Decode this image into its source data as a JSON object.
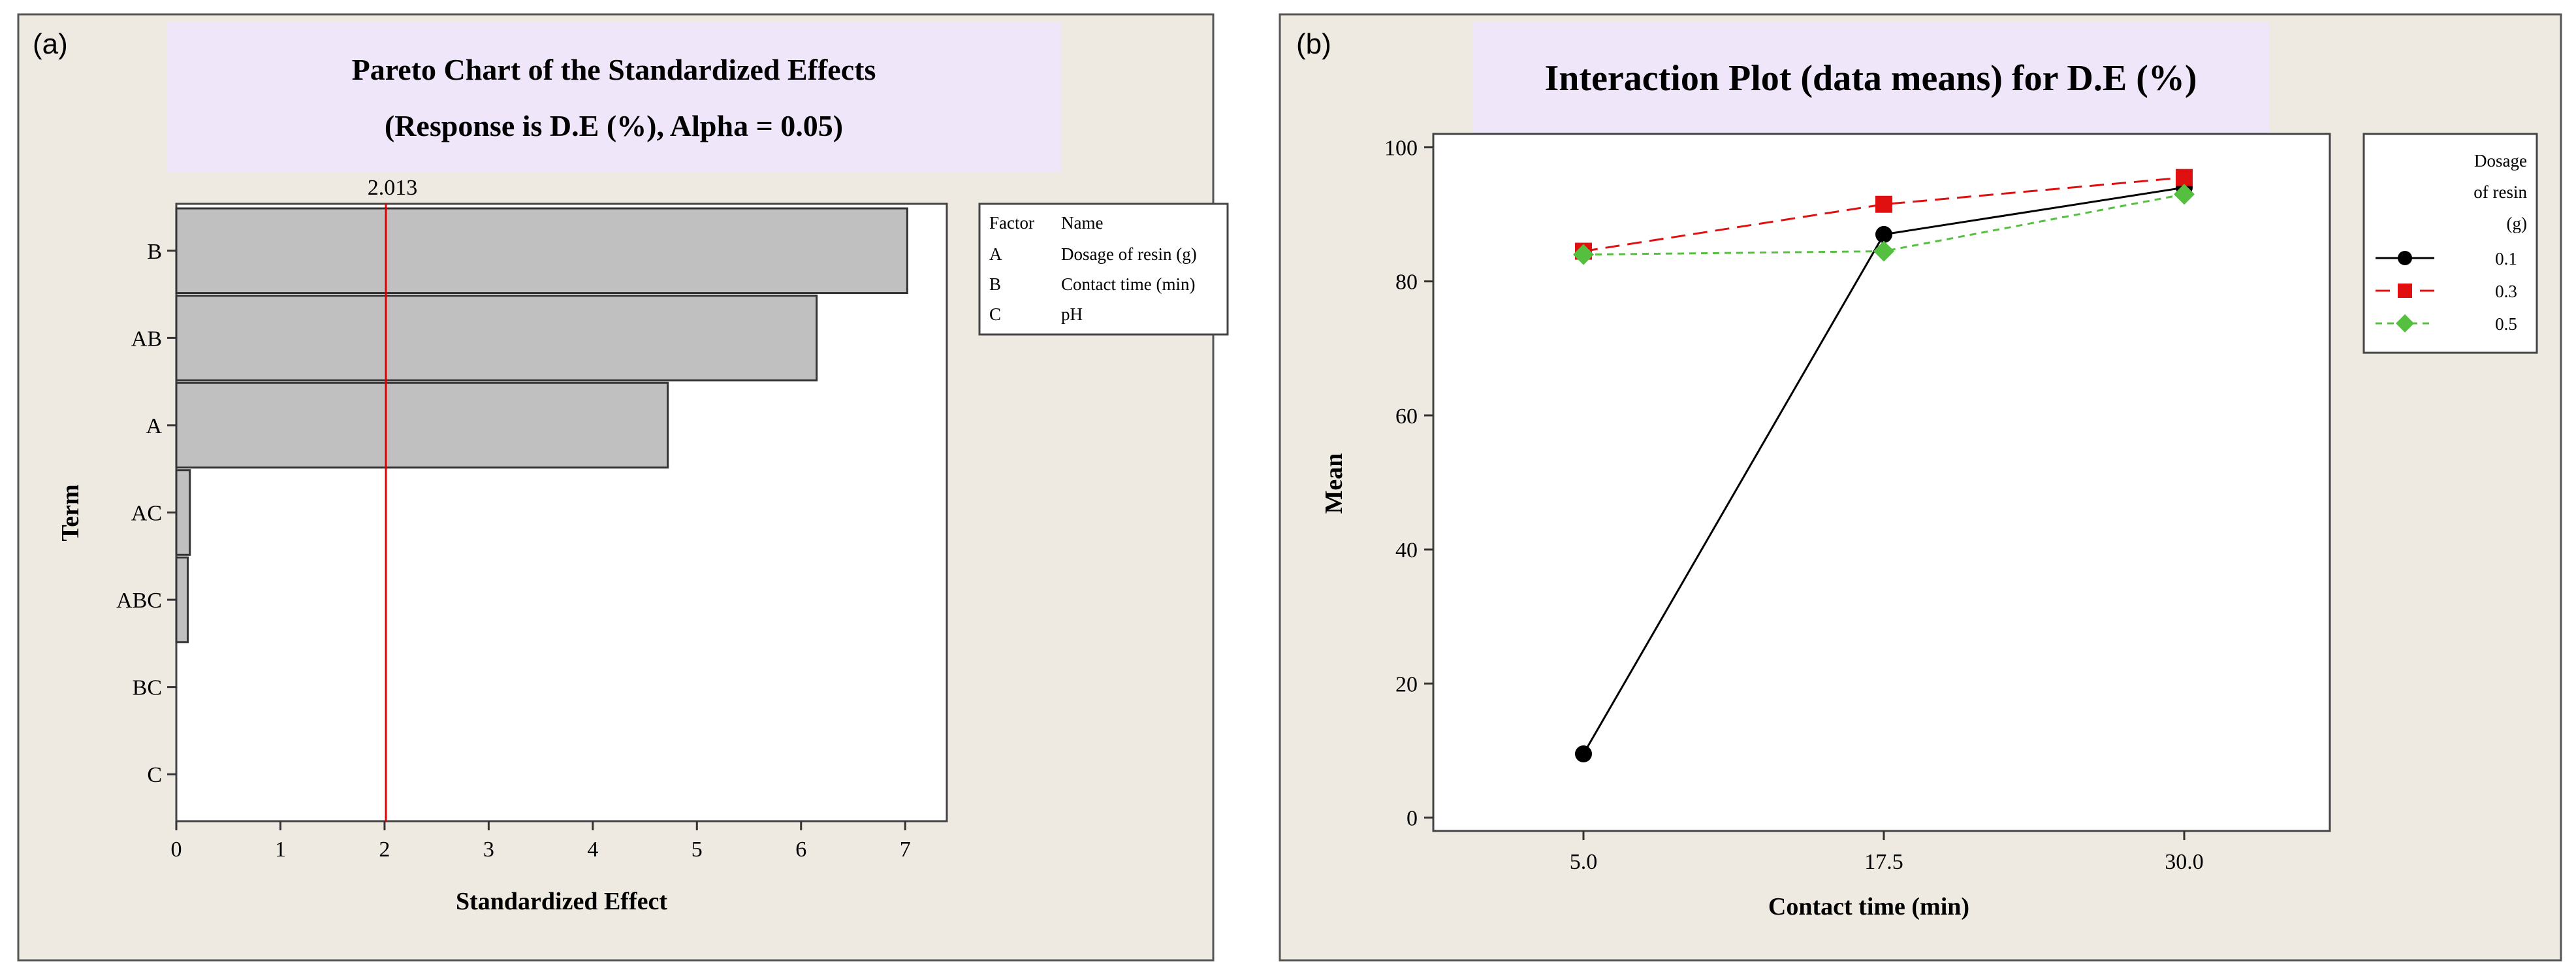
{
  "colors": {
    "panel_bg": "#eeeae1",
    "title_bg": "#efe6fa",
    "bar_fill": "#c0c0c0",
    "ref_line": "#e00000",
    "series_0_1": "#000000",
    "series_0_3": "#e01010",
    "series_0_5": "#55c040"
  },
  "chart_data": [
    {
      "panel_label": "(a)",
      "type": "bar",
      "orientation": "horizontal",
      "title": "Pareto Chart of the Standardized Effects",
      "subtitle": "(Response is D.E (%), Alpha = 0.05)",
      "xlabel": "Standardized Effect",
      "ylabel": "Term",
      "xlim": [
        0,
        7.4
      ],
      "xticks": [
        "0",
        "1",
        "2",
        "3",
        "4",
        "5",
        "6",
        "7"
      ],
      "xtick_values": [
        0,
        1,
        2,
        3,
        4,
        5,
        6,
        7
      ],
      "categories": [
        "B",
        "AB",
        "A",
        "AC",
        "ABC",
        "BC",
        "C"
      ],
      "values": [
        7.02,
        6.15,
        4.72,
        0.13,
        0.11,
        0.0,
        0.0
      ],
      "reference_line": {
        "value": 2.013,
        "label": "2.013"
      },
      "legend": {
        "header": {
          "factor": "Factor",
          "name": "Name"
        },
        "rows": [
          {
            "factor": "A",
            "name": "Dosage of resin (g)"
          },
          {
            "factor": "B",
            "name": "Contact time (min)"
          },
          {
            "factor": "C",
            "name": "pH"
          }
        ]
      }
    },
    {
      "panel_label": "(b)",
      "type": "line",
      "title": "Interaction Plot (data means) for D.E (%)",
      "xlabel": "Contact time (min)",
      "ylabel": "Mean",
      "categories": [
        "5.0",
        "17.5",
        "30.0"
      ],
      "ylim": [
        -2,
        102
      ],
      "yticks": [
        "0",
        "20",
        "40",
        "60",
        "80",
        "100"
      ],
      "ytick_values": [
        0,
        20,
        40,
        60,
        80,
        100
      ],
      "legend_title": [
        "Dosage",
        "of resin",
        "(g)"
      ],
      "series": [
        {
          "name": "0.1",
          "values": [
            9.5,
            87.0,
            94.0
          ],
          "marker": "circle",
          "dash": "solid",
          "color_key": "series_0_1"
        },
        {
          "name": "0.3",
          "values": [
            84.5,
            91.5,
            95.5
          ],
          "marker": "square",
          "dash": "dashed",
          "color_key": "series_0_3"
        },
        {
          "name": "0.5",
          "values": [
            84.0,
            84.5,
            93.0
          ],
          "marker": "diamond",
          "dash": "dotted",
          "color_key": "series_0_5"
        }
      ]
    }
  ]
}
